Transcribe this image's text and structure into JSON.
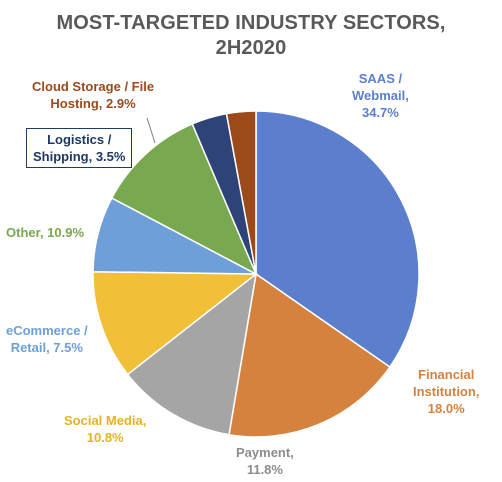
{
  "chart_data": {
    "type": "pie",
    "title_lines": [
      "MOST-TARGETED INDUSTRY SECTORS,",
      "2H2020"
    ],
    "slices": [
      {
        "label_lines": [
          "SAAS /",
          "Webmail,",
          "34.7%"
        ],
        "value": 34.7,
        "color": "#5b7fcc",
        "label_color": "#5b7fcc"
      },
      {
        "label_lines": [
          "Financial",
          "Institution,",
          "18.0%"
        ],
        "value": 18.0,
        "color": "#d6823f",
        "label_color": "#d6823f"
      },
      {
        "label_lines": [
          "Payment,",
          "11.8%"
        ],
        "value": 11.8,
        "color": "#a5a5a5",
        "label_color": "#8c8c8c"
      },
      {
        "label_lines": [
          "Social Media,",
          "10.8%"
        ],
        "value": 10.8,
        "color": "#f2c038",
        "label_color": "#e6b320"
      },
      {
        "label_lines": [
          "eCommerce /",
          "Retail, 7.5%"
        ],
        "value": 7.5,
        "color": "#6f9fd8",
        "label_color": "#6f9fd8"
      },
      {
        "label_lines": [
          "Other, 10.9%"
        ],
        "value": 10.9,
        "color": "#78a84f",
        "label_color": "#78a84f"
      },
      {
        "label_lines": [
          "Logistics /",
          "Shipping, 3.5%"
        ],
        "value": 3.5,
        "color": "#2e4378",
        "label_color": "#1f3864"
      },
      {
        "label_lines": [
          "Cloud Storage / File",
          "Hosting, 2.9%"
        ],
        "value": 2.9,
        "color": "#9c4a1a",
        "label_color": "#9c4a1a"
      }
    ]
  }
}
